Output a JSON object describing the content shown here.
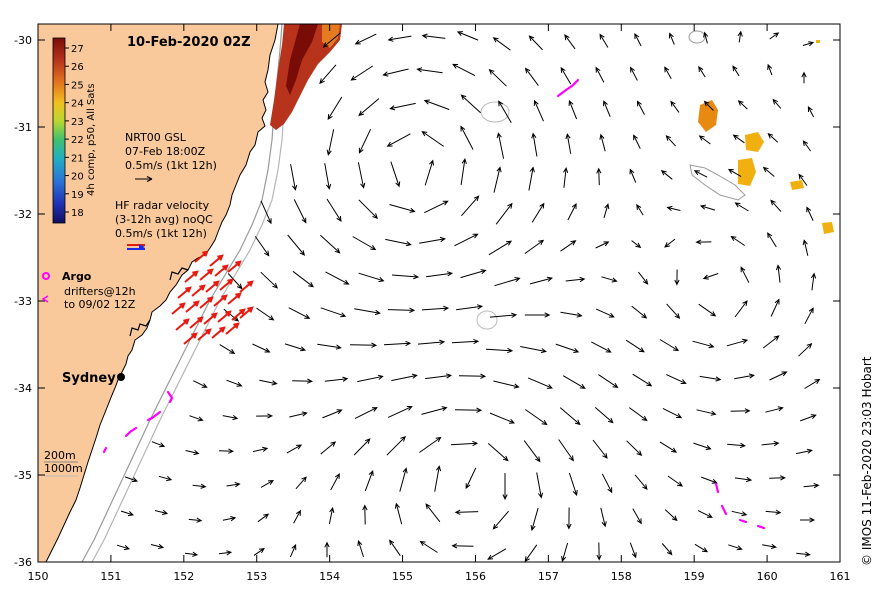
{
  "map": {
    "title": "10-Feb-2020 02Z",
    "x_ticks": [
      "150",
      "151",
      "152",
      "153",
      "154",
      "155",
      "156",
      "157",
      "158",
      "159",
      "160",
      "161"
    ],
    "y_ticks": [
      "-30",
      "-31",
      "-32",
      "-33",
      "-34",
      "-35",
      "-36"
    ],
    "colorbar": {
      "caption": "4h comp, p50, All Sats",
      "ticks": [
        "27",
        "26",
        "25",
        "24",
        "23",
        "22",
        "21",
        "20",
        "19",
        "18"
      ]
    },
    "gsl": {
      "line1": "NRT00 GSL",
      "line2": "07-Feb 18:00Z",
      "line3": "0.5m/s (1kt 12h)"
    },
    "hf": {
      "line1": "HF radar velocity",
      "line2": "(3-12h avg) noQC",
      "line3": "0.5m/s (1kt 12h)"
    },
    "argo": {
      "label": "Argo",
      "drifters1": "drifters@12h",
      "drifters2": "to 09/02 12Z"
    },
    "city": "Sydney",
    "depth": {
      "d200": "200m",
      "d1000": "1000m"
    },
    "credit": "© IMOS 11-Feb-2020 23:03 Hobart",
    "colors": {
      "land": "#f9c99b",
      "radar": "#e81a10",
      "drifter": "#ff00ff",
      "blue": "#1a2ae8"
    }
  }
}
